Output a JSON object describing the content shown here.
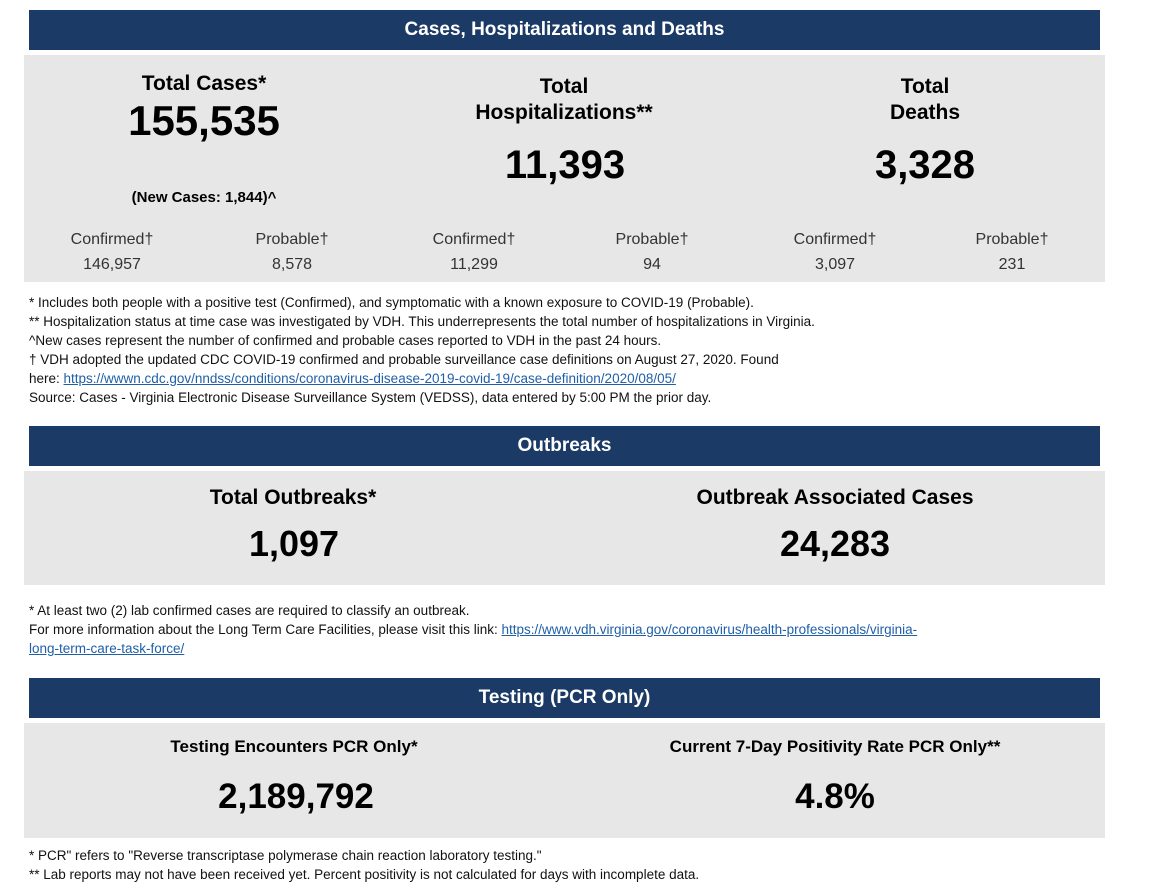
{
  "cases": {
    "header": "Cases, Hospitalizations and Deaths",
    "total_cases": {
      "label": "Total Cases*",
      "value": "155,535",
      "new_cases": "(New Cases: 1,844)^",
      "confirmed_label": "Confirmed†",
      "confirmed": "146,957",
      "probable_label": "Probable†",
      "probable": "8,578"
    },
    "hospitalizations": {
      "label_line1": "Total",
      "label_line2": "Hospitalizations**",
      "value": "11,393",
      "confirmed_label": "Confirmed†",
      "confirmed": "11,299",
      "probable_label": "Probable†",
      "probable": "94"
    },
    "deaths": {
      "label_line1": "Total",
      "label_line2": "Deaths",
      "value": "3,328",
      "confirmed_label": "Confirmed†",
      "confirmed": "3,097",
      "probable_label": "Probable†",
      "probable": "231"
    },
    "notes": [
      "* Includes both people with a positive test (Confirmed), and symptomatic with a known exposure to COVID-19 (Probable).",
      "** Hospitalization status at time case was investigated by VDH. This underrepresents the total number of hospitalizations in Virginia.",
      "^New cases represent the number of confirmed and probable cases reported to VDH in the past 24 hours.",
      "† VDH adopted the updated CDC COVID-19 confirmed and probable surveillance case definitions on August 27, 2020. Found"
    ],
    "link_prefix": "here: ",
    "link": "https://wwwn.cdc.gov/nndss/conditions/coronavirus-disease-2019-covid-19/case-definition/2020/08/05/",
    "source": "Source:  Cases - Virginia Electronic Disease Surveillance System (VEDSS), data entered by 5:00 PM the prior day."
  },
  "outbreaks": {
    "header": "Outbreaks",
    "total_label": "Total Outbreaks*",
    "total": "1,097",
    "assoc_label": "Outbreak Associated Cases",
    "assoc": "24,283",
    "note1": "* At least two (2) lab confirmed cases are required to classify an outbreak.",
    "note2_prefix": "For more information about the Long Term Care Facilities, please visit this link: ",
    "link_part1": "https://www.vdh.virginia.gov/coronavirus/health-professionals/virginia-",
    "link_part2": "long-term-care-task-force/"
  },
  "testing": {
    "header": "Testing (PCR Only)",
    "encounters_label": "Testing Encounters PCR Only*",
    "encounters": "2,189,792",
    "positivity_label": "Current 7-Day Positivity Rate PCR Only**",
    "positivity": "4.8%",
    "note1": "* PCR\" refers to \"Reverse transcriptase polymerase chain reaction laboratory testing.\"",
    "note2": "** Lab reports may not have been received yet. Percent positivity is not calculated for days with incomplete data."
  }
}
